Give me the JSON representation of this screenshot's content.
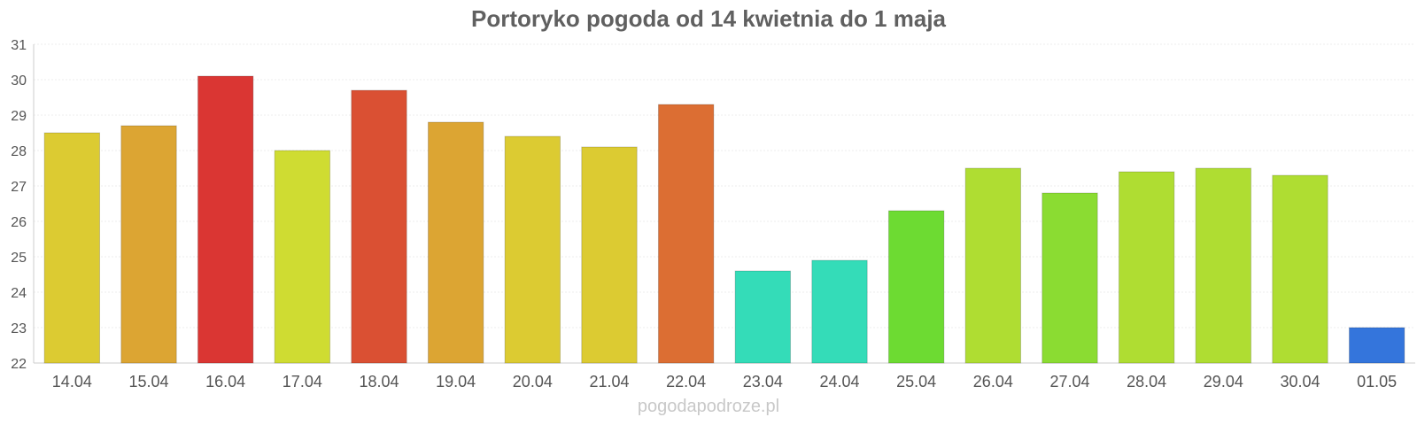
{
  "chart_data": {
    "type": "bar",
    "title": "Portoryko pogoda od 14 kwietnia do 1 maja",
    "xlabel": "",
    "ylabel": "",
    "ylim": [
      22,
      31
    ],
    "yticks": [
      22,
      23,
      24,
      25,
      26,
      27,
      28,
      29,
      30,
      31
    ],
    "grid": true,
    "legend": "none",
    "categories": [
      "14.04",
      "15.04",
      "16.04",
      "17.04",
      "18.04",
      "19.04",
      "20.04",
      "21.04",
      "22.04",
      "23.04",
      "24.04",
      "25.04",
      "26.04",
      "27.04",
      "28.04",
      "29.04",
      "30.04",
      "01.05"
    ],
    "values": [
      28.5,
      28.7,
      30.1,
      28.0,
      29.7,
      28.8,
      28.4,
      28.1,
      29.3,
      24.6,
      24.9,
      26.3,
      27.5,
      26.8,
      27.4,
      27.5,
      27.3,
      23.0
    ],
    "colors": [
      "#dccb32",
      "#dca533",
      "#da3633",
      "#cfdc32",
      "#da5033",
      "#dca533",
      "#dccb32",
      "#dccb32",
      "#dc6e33",
      "#34dcb8",
      "#34dcb8",
      "#6ddb32",
      "#afdd32",
      "#8bdc32",
      "#afdd32",
      "#afdd32",
      "#afdd32",
      "#3475dc"
    ]
  },
  "watermark": "pogodapodroze.pl"
}
